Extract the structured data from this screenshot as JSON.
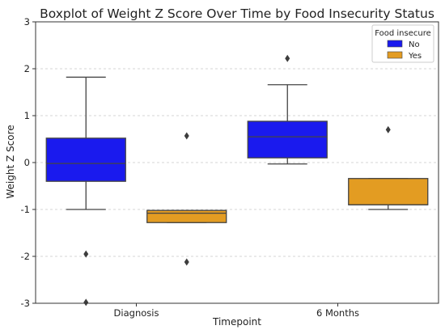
{
  "chart_data": {
    "type": "boxplot",
    "title": "Boxplot of Weight Z Score Over Time by Food Insecurity Status",
    "xlabel": "Timepoint",
    "ylabel": "Weight Z Score",
    "ylim": [
      -3,
      3
    ],
    "yticks": [
      -3,
      -2,
      -1,
      0,
      1,
      2,
      3
    ],
    "categories": [
      "Diagnosis",
      "6 Months"
    ],
    "grid": "horizontal dashed",
    "legend": {
      "title": "Food insecure",
      "placement": "top-right"
    },
    "series": [
      {
        "name": "No",
        "color": "#1a1aee",
        "boxes": [
          {
            "category": "Diagnosis",
            "whisker_low": -1.0,
            "q1": -0.4,
            "median": -0.02,
            "q3": 0.52,
            "whisker_high": 1.82,
            "outliers": [
              -1.95,
              -2.98
            ]
          },
          {
            "category": "6 Months",
            "whisker_low": -0.03,
            "q1": 0.1,
            "median": 0.55,
            "q3": 0.88,
            "whisker_high": 1.66,
            "outliers": [
              2.22
            ]
          }
        ]
      },
      {
        "name": "Yes",
        "color": "#e39c22",
        "boxes": [
          {
            "category": "Diagnosis",
            "whisker_low": -1.28,
            "q1": -1.28,
            "median": -1.08,
            "q3": -1.02,
            "whisker_high": -1.02,
            "outliers": [
              0.57,
              -2.12
            ]
          },
          {
            "category": "6 Months",
            "whisker_low": -1.0,
            "q1": -0.9,
            "median": -0.9,
            "q3": -0.34,
            "whisker_high": -0.34,
            "outliers": [
              0.7
            ]
          }
        ]
      }
    ]
  }
}
